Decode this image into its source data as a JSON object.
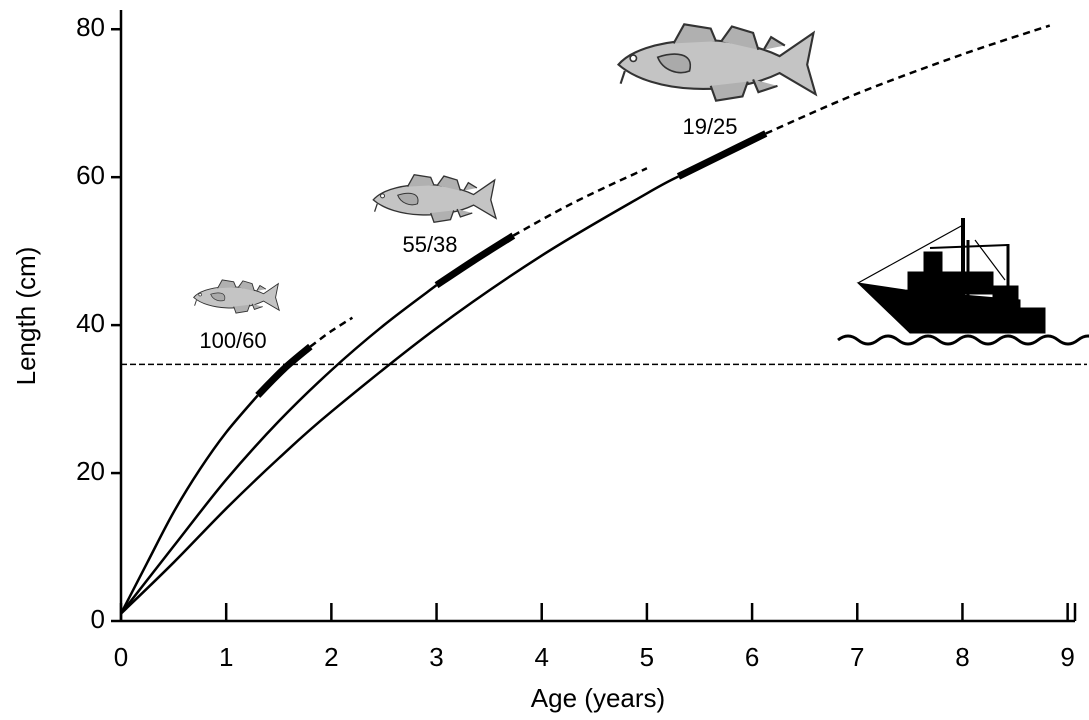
{
  "chart_data": {
    "type": "line",
    "x_label": "Age (years)",
    "y_label": "Length (cm)",
    "xlim": [
      0,
      9.07
    ],
    "ylim": [
      0,
      82.6
    ],
    "xticks": [
      0,
      1,
      2,
      3,
      4,
      5,
      6,
      7,
      8,
      9
    ],
    "yticks": [
      0,
      20,
      40,
      60,
      80
    ],
    "color": "#000000",
    "hline": 34.7,
    "annotations": [
      "100/60",
      "55/38",
      "19/25"
    ],
    "series": [
      {
        "style": "solid",
        "x": [
          0,
          0.25,
          0.5,
          0.75,
          1.0,
          1.3
        ],
        "values": [
          1,
          7.9,
          14.7,
          20.5,
          25.5,
          30.5
        ]
      },
      {
        "style": "thick",
        "x": [
          1.3,
          1.55,
          1.8
        ],
        "values": [
          30.5,
          34.1,
          37.1
        ]
      },
      {
        "style": "dashed",
        "x": [
          1.8,
          2.0,
          2.2
        ],
        "values": [
          37.1,
          39.2,
          41.0
        ]
      },
      {
        "style": "solid",
        "x": [
          0,
          0.5,
          1,
          1.5,
          2,
          2.5,
          3
        ],
        "values": [
          1,
          10.1,
          19.1,
          27.0,
          33.9,
          40.0,
          45.4
        ]
      },
      {
        "style": "thick",
        "x": [
          3,
          3.35,
          3.73
        ],
        "values": [
          45.4,
          48.7,
          52.1
        ]
      },
      {
        "style": "dashed",
        "x": [
          3.73,
          4.2,
          4.6,
          5.0
        ],
        "values": [
          52.1,
          55.8,
          58.6,
          61.2
        ]
      },
      {
        "style": "solid",
        "x": [
          0,
          0.5,
          1,
          1.5,
          2,
          3,
          4,
          5,
          5.3
        ],
        "values": [
          1,
          7.9,
          15.2,
          22.0,
          28.3,
          39.6,
          49.4,
          57.8,
          60.1
        ]
      },
      {
        "style": "thick",
        "x": [
          5.3,
          5.7,
          6.13
        ],
        "values": [
          60.1,
          62.9,
          65.9
        ]
      },
      {
        "style": "dashed",
        "x": [
          6.13,
          7,
          8,
          8.83
        ],
        "values": [
          65.9,
          71.3,
          76.6,
          80.5
        ]
      }
    ]
  }
}
